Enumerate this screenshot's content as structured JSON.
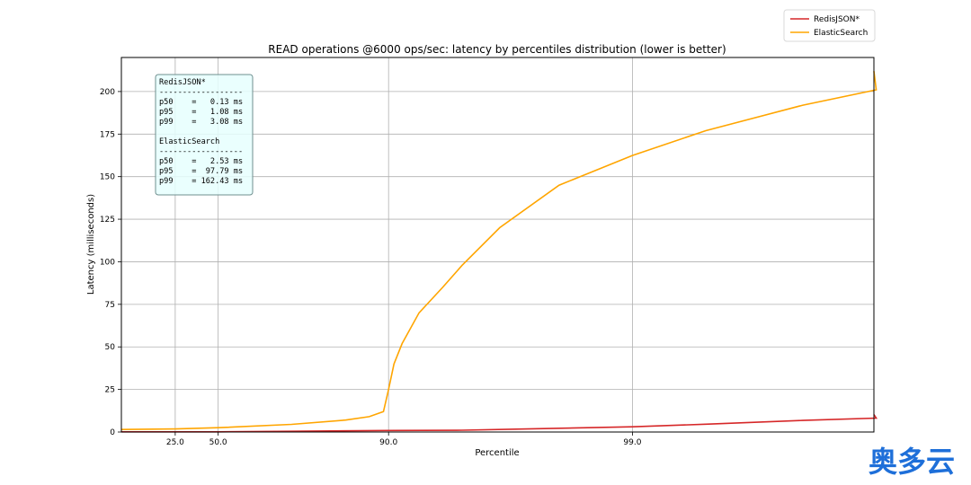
{
  "chart_data": {
    "type": "line",
    "title": "READ operations @6000 ops/sec: latency by percentiles distribution (lower is better)",
    "xlabel": "Percentile",
    "ylabel": "Latency (milliseconds)",
    "x_scale": "inverse-log (percentile)",
    "x_ticks": [
      "25.0",
      "50.0",
      "90.0",
      "99.0"
    ],
    "y_ticks": [
      "0",
      "25",
      "50",
      "75",
      "100",
      "125",
      "150",
      "175",
      "200"
    ],
    "ylim": [
      0,
      220
    ],
    "grid": true,
    "legend_position": "top-right",
    "series": [
      {
        "name": "RedisJSON*",
        "color": "#d62728",
        "points": [
          [
            0,
            0.1
          ],
          [
            25,
            0.1
          ],
          [
            50,
            0.13
          ],
          [
            75,
            0.4
          ],
          [
            90,
            0.9
          ],
          [
            95,
            1.08
          ],
          [
            97,
            1.7
          ],
          [
            99,
            3.08
          ],
          [
            99.5,
            4.6
          ],
          [
            99.8,
            6.8
          ],
          [
            99.9,
            8.2
          ],
          [
            99.95,
            10.3
          ]
        ]
      },
      {
        "name": "ElasticSearch",
        "color": "#ffa500",
        "points": [
          [
            0,
            1.5
          ],
          [
            25,
            1.8
          ],
          [
            50,
            2.53
          ],
          [
            75,
            4.5
          ],
          [
            85,
            7.0
          ],
          [
            88,
            9.0
          ],
          [
            89.5,
            12.0
          ],
          [
            90,
            25
          ],
          [
            90.5,
            40
          ],
          [
            91.2,
            52
          ],
          [
            92.5,
            70
          ],
          [
            94,
            85
          ],
          [
            95,
            97.79
          ],
          [
            96.5,
            120
          ],
          [
            98,
            145
          ],
          [
            99,
            162.43
          ],
          [
            99.5,
            177
          ],
          [
            99.8,
            192
          ],
          [
            99.9,
            201
          ],
          [
            99.95,
            212
          ]
        ]
      }
    ]
  },
  "stats_box": {
    "lines": [
      "RedisJSON*",
      "------------------",
      "p50    =   0.13 ms",
      "p95    =   1.08 ms",
      "p99    =   3.08 ms",
      "",
      "ElasticSearch",
      "------------------",
      "p50    =   2.53 ms",
      "p95    =  97.79 ms",
      "p99    = 162.43 ms"
    ]
  },
  "watermark": {
    "text": "奥多云",
    "color": "#1e6fd9"
  }
}
